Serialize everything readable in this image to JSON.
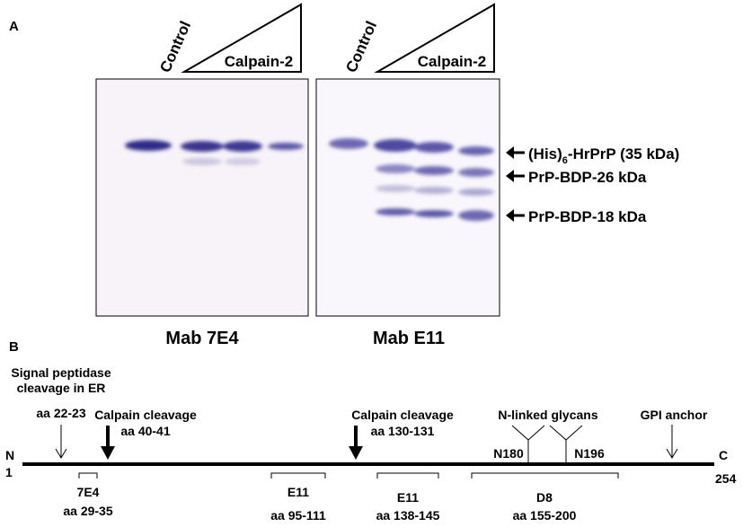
{
  "panel_a": {
    "label": "A",
    "blots": [
      {
        "control_label": "Control",
        "treatment_label": "Calpain-2",
        "antibody": "Mab 7E4"
      },
      {
        "control_label": "Control",
        "treatment_label": "Calpain-2",
        "antibody": "Mab E11"
      }
    ],
    "band_labels": [
      {
        "prefix": "(His)",
        "subscript": "6",
        "suffix": "-HrPrP (35 kDa)"
      },
      {
        "text": "PrP-BDP-26 kDa"
      },
      {
        "text": "PrP-BDP-18 kDa"
      }
    ]
  },
  "panel_b": {
    "label": "B",
    "n_terminus": "N",
    "start": "1",
    "c_terminus": "C",
    "end": "254",
    "sites": [
      {
        "lines": [
          "Signal peptidase",
          "cleavage in ER"
        ],
        "range": "aa 22-23"
      },
      {
        "lines": [
          "Calpain cleavage"
        ],
        "range": "aa 40-41"
      },
      {
        "lines": [
          "Calpain cleavage"
        ],
        "range": "aa 130-131"
      },
      {
        "lines": [
          "N-linked glycans"
        ],
        "glycans": [
          "N180",
          "N196"
        ]
      },
      {
        "lines": [
          "GPI anchor"
        ]
      }
    ],
    "epitopes": [
      {
        "antibody": "7E4",
        "range": "aa 29-35"
      },
      {
        "antibody": "E11",
        "range": "aa 95-111"
      },
      {
        "antibody": "E11",
        "range": "aa 138-145"
      },
      {
        "antibody": "D8",
        "range": "aa 155-200"
      }
    ]
  }
}
